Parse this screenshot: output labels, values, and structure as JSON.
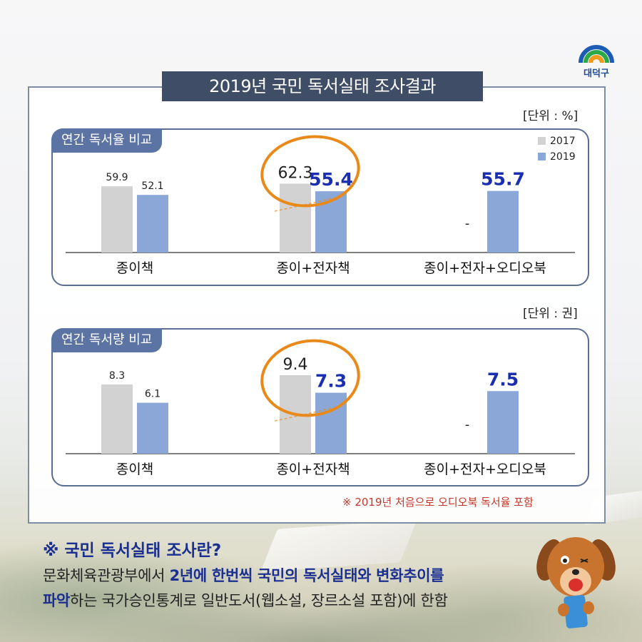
{
  "header": {
    "title": "2019년 국민 독서실태 조사결과",
    "logo_text": "대덕구"
  },
  "charts_meta": {
    "reading_rate": {
      "tab": "연간 독서율 비교",
      "unit": "[단위 : %]"
    },
    "reading_volume": {
      "tab": "연간 독서량 비교",
      "unit": "[단위 : 권]"
    }
  },
  "colors": {
    "2017": "#d2d2d2",
    "2019": "#8aa7d8",
    "highlight_label": "#1a2fb0",
    "circle": "#e8891a"
  },
  "chart_data": [
    {
      "type": "bar",
      "title": "연간 독서율 비교",
      "unit": "%",
      "categories": [
        "종이책",
        "종이+전자책",
        "종이+전자+오디오북"
      ],
      "series": [
        {
          "name": "2017",
          "values": [
            59.9,
            62.3,
            null
          ],
          "labels": [
            "59.9",
            "62.3",
            "-"
          ]
        },
        {
          "name": "2019",
          "values": [
            52.1,
            55.4,
            55.7
          ],
          "labels": [
            "52.1",
            "55.4",
            "55.7"
          ]
        }
      ],
      "ylim": [
        0,
        100
      ],
      "legend": "top-right"
    },
    {
      "type": "bar",
      "title": "연간 독서량 비교",
      "unit": "권",
      "categories": [
        "종이책",
        "종이+전자책",
        "종이+전자+오디오북"
      ],
      "series": [
        {
          "name": "2017",
          "values": [
            8.3,
            9.4,
            null
          ],
          "labels": [
            "8.3",
            "9.4",
            "-"
          ]
        },
        {
          "name": "2019",
          "values": [
            6.1,
            7.3,
            7.5
          ],
          "labels": [
            "6.1",
            "7.3",
            "7.5"
          ]
        }
      ],
      "ylim": [
        0,
        14
      ]
    }
  ],
  "footnote": "※ 2019년 처음으로 오디오북 독서율 포함",
  "info": {
    "question": "※ 국민 독서실태 조사란?",
    "line1_a": "문화체육관광부에서 ",
    "line1_b": "2년에 한번씩 국민의 독서실태와 변화추이를",
    "line2_a": "파악",
    "line2_b": "하는 국가승인통계로 일반도서(웹소설, 장르소설 포함)에 한함"
  }
}
